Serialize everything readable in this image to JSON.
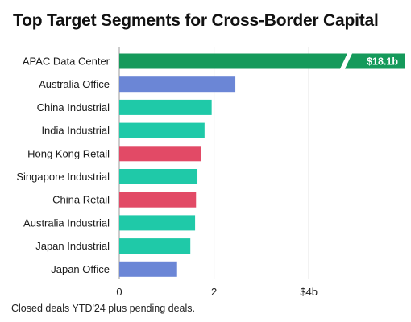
{
  "chart_data": {
    "type": "bar",
    "orientation": "horizontal",
    "title": "Top Target Segments for Cross-Border Capital",
    "unit": "$b",
    "categories": [
      "APAC Data Center",
      "Australia Office",
      "China Industrial",
      "India Industrial",
      "Hong Kong Retail",
      "Singapore Industrial",
      "China Retail",
      "Australia Industrial",
      "Japan Industrial",
      "Japan Office"
    ],
    "values": [
      18.1,
      2.45,
      1.95,
      1.8,
      1.72,
      1.65,
      1.62,
      1.6,
      1.5,
      1.22
    ],
    "value_labels": [
      "$18.1b",
      "",
      "",
      "",
      "",
      "",
      "",
      "",
      "",
      ""
    ],
    "bar_colors": [
      "#159a5b",
      "#6b86d6",
      "#1fc9a8",
      "#1fc9a8",
      "#e24a66",
      "#1fc9a8",
      "#e24a66",
      "#1fc9a8",
      "#1fc9a8",
      "#6b86d6"
    ],
    "xlim": [
      0,
      5.8
    ],
    "xticks": [
      0,
      2,
      4
    ],
    "xtick_labels": [
      "0",
      "2",
      "$4b"
    ],
    "axis_break": true,
    "grid": true,
    "xlabel": "",
    "ylabel": ""
  },
  "footnote": "Closed deals YTD'24 plus pending deals."
}
